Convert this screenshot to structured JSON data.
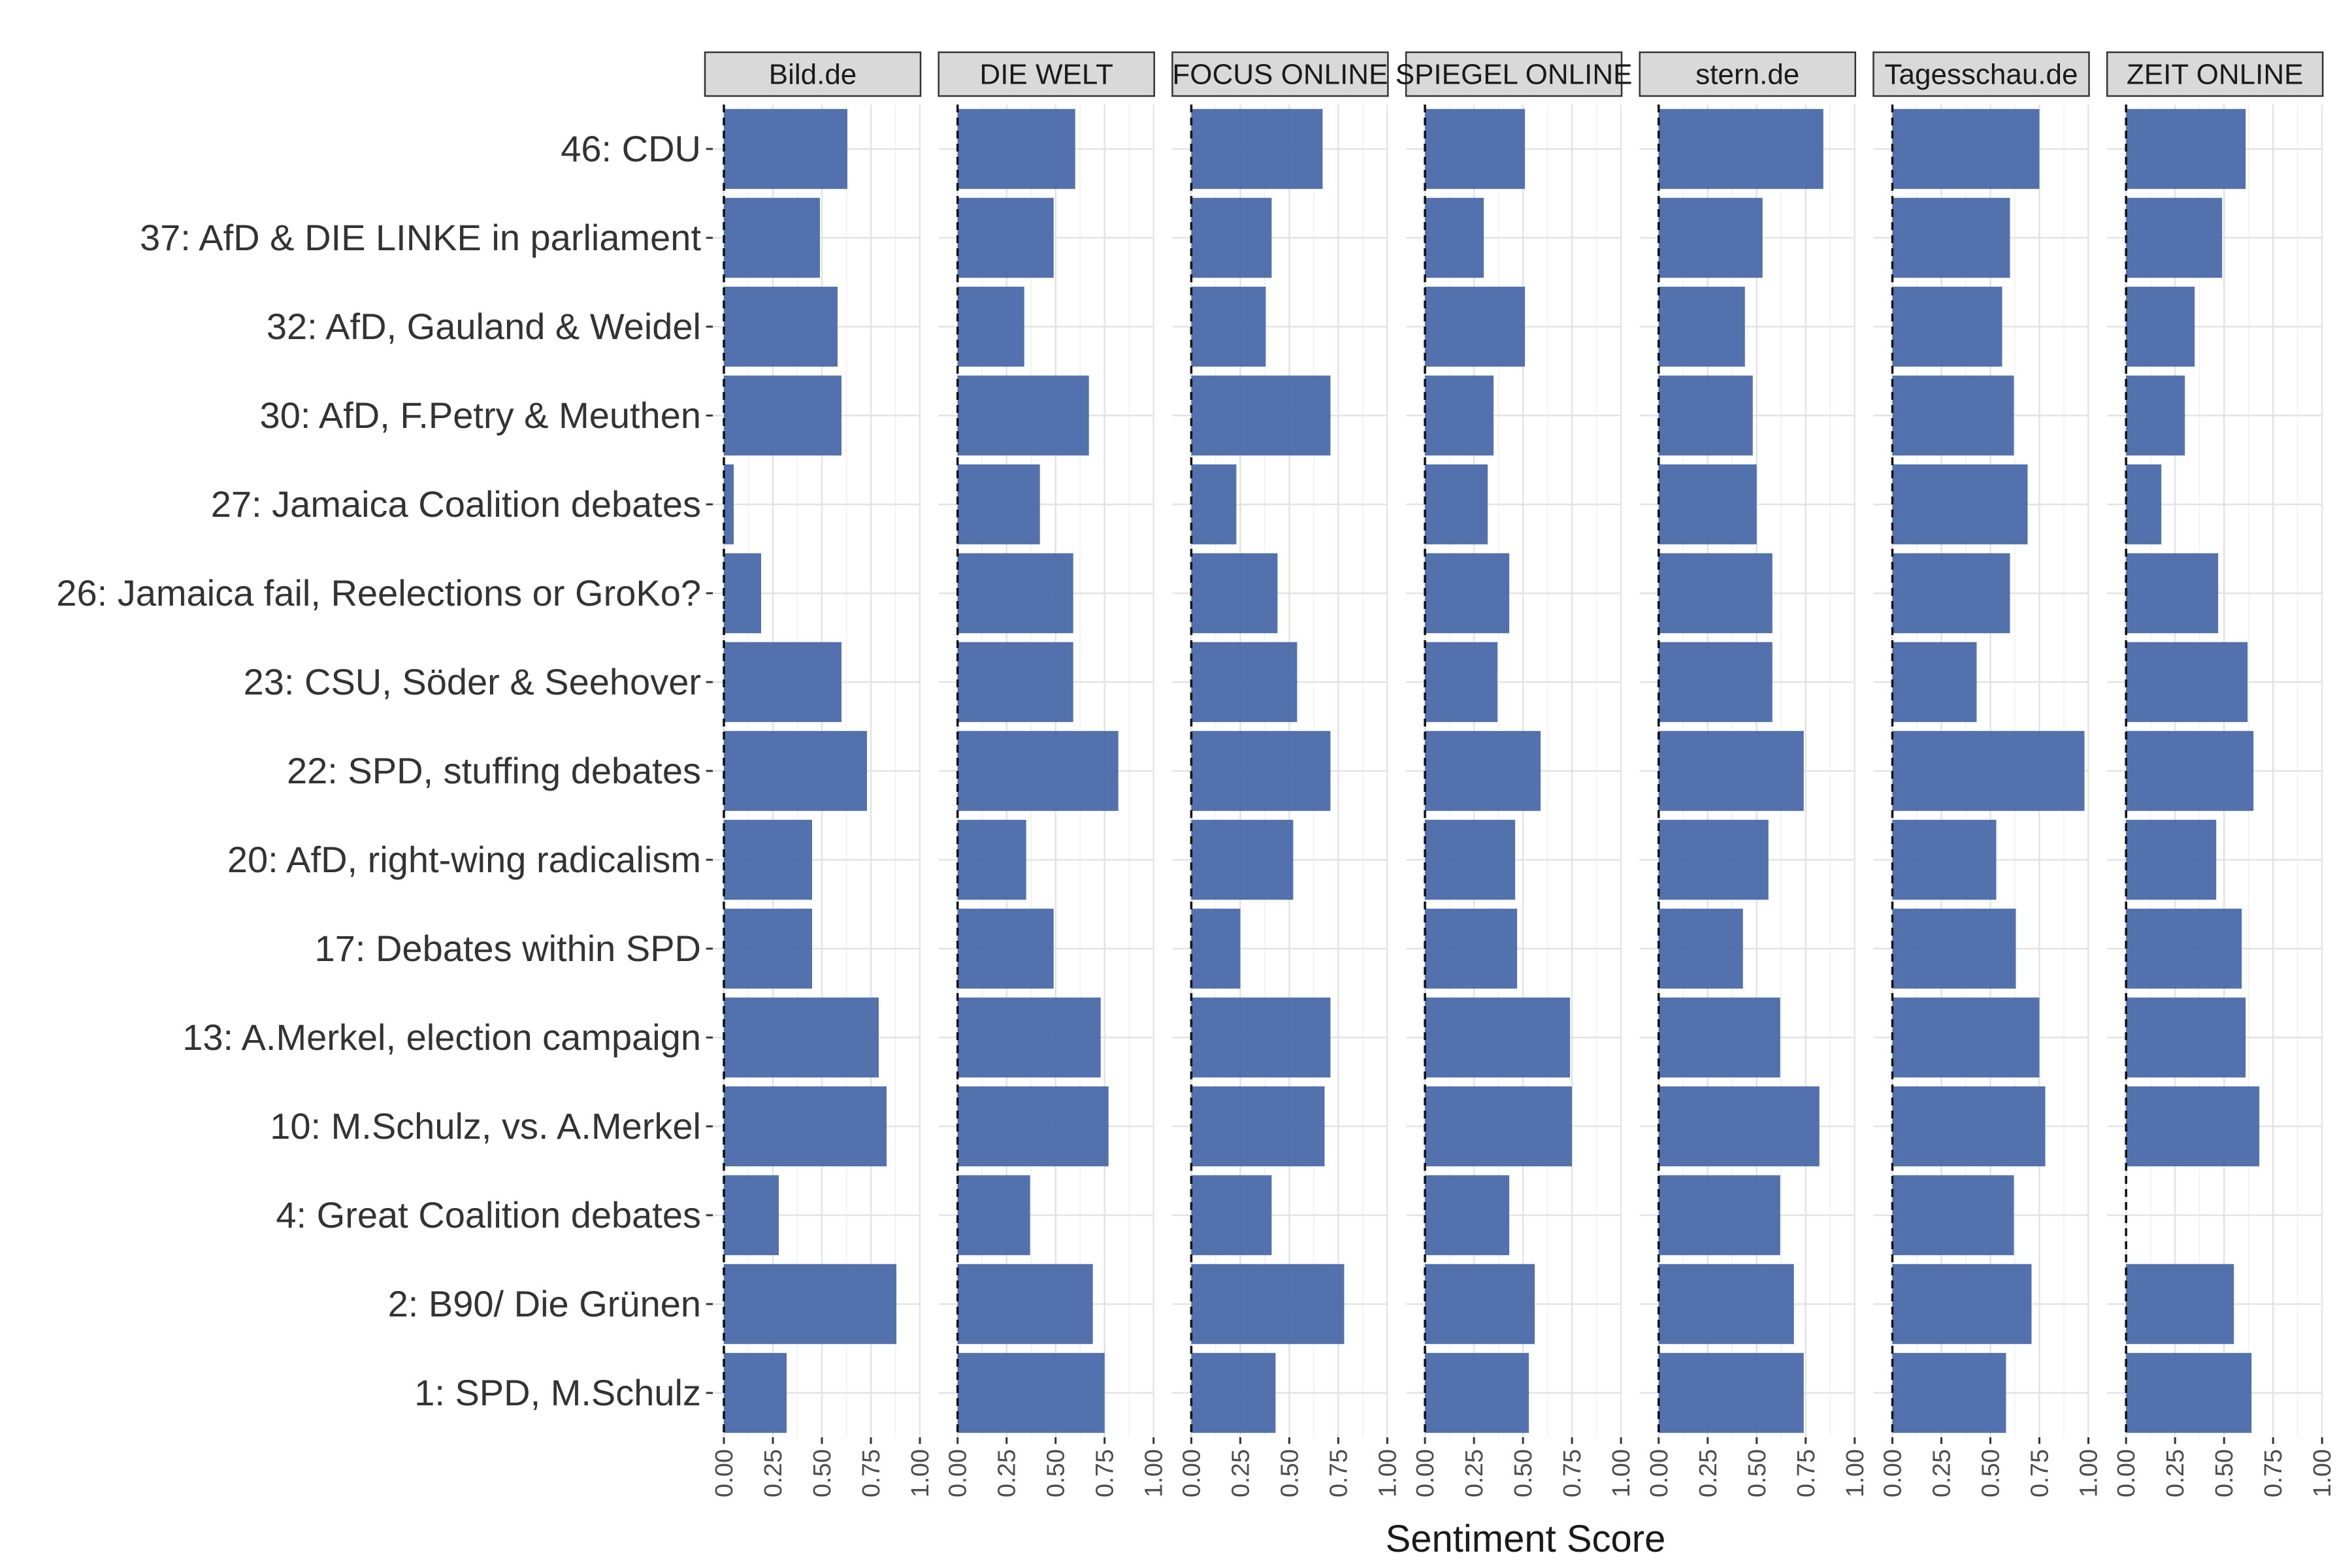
{
  "chart_data": {
    "type": "bar",
    "orientation": "horizontal",
    "xlabel": "Sentiment Score",
    "xlim": [
      0,
      1
    ],
    "x_ticks": [
      "0.00",
      "0.25",
      "0.50",
      "0.75",
      "1.00"
    ],
    "grid": true,
    "bar_color": "#4A69A8",
    "reference_line": 0,
    "categories": [
      "46: CDU",
      "37: AfD & DIE LINKE in parliament",
      "32: AfD, Gauland & Weidel",
      "30: AfD, F.Petry & Meuthen",
      "27: Jamaica Coalition debates",
      "26: Jamaica fail, Reelections or GroKo?",
      "23: CSU, Söder & Seehover",
      "22: SPD, stuffing debates",
      "20: AfD, right-wing radicalism",
      "17: Debates within SPD",
      "13: A.Merkel, election campaign",
      "10: M.Schulz, vs. A.Merkel",
      "4: Great Coalition debates",
      "2: B90/ Die Grünen",
      "1: SPD, M.Schulz"
    ],
    "panels": [
      {
        "name": "Bild.de",
        "values": [
          0.63,
          0.49,
          0.58,
          0.6,
          0.05,
          0.19,
          0.6,
          0.73,
          0.45,
          0.45,
          0.79,
          0.83,
          0.28,
          0.88,
          0.32
        ]
      },
      {
        "name": "DIE WELT",
        "values": [
          0.6,
          0.49,
          0.34,
          0.67,
          0.42,
          0.59,
          0.59,
          0.82,
          0.35,
          0.49,
          0.73,
          0.77,
          0.37,
          0.69,
          0.75
        ]
      },
      {
        "name": "FOCUS ONLINE",
        "values": [
          0.67,
          0.41,
          0.38,
          0.71,
          0.23,
          0.44,
          0.54,
          0.71,
          0.52,
          0.25,
          0.71,
          0.68,
          0.41,
          0.78,
          0.43
        ]
      },
      {
        "name": "SPIEGEL ONLINE",
        "values": [
          0.51,
          0.3,
          0.51,
          0.35,
          0.32,
          0.43,
          0.37,
          0.59,
          0.46,
          0.47,
          0.74,
          0.75,
          0.43,
          0.56,
          0.53
        ]
      },
      {
        "name": "stern.de",
        "values": [
          0.84,
          0.53,
          0.44,
          0.48,
          0.5,
          0.58,
          0.58,
          0.74,
          0.56,
          0.43,
          0.62,
          0.82,
          0.62,
          0.69,
          0.74
        ]
      },
      {
        "name": "Tagesschau.de",
        "values": [
          0.75,
          0.6,
          0.56,
          0.62,
          0.69,
          0.6,
          0.43,
          0.98,
          0.53,
          0.63,
          0.75,
          0.78,
          0.62,
          0.71,
          0.58
        ]
      },
      {
        "name": "ZEIT ONLINE",
        "values": [
          0.61,
          0.49,
          0.35,
          0.3,
          0.18,
          0.47,
          0.62,
          0.65,
          0.46,
          0.59,
          0.61,
          0.68,
          null,
          0.55,
          0.64
        ]
      }
    ]
  }
}
